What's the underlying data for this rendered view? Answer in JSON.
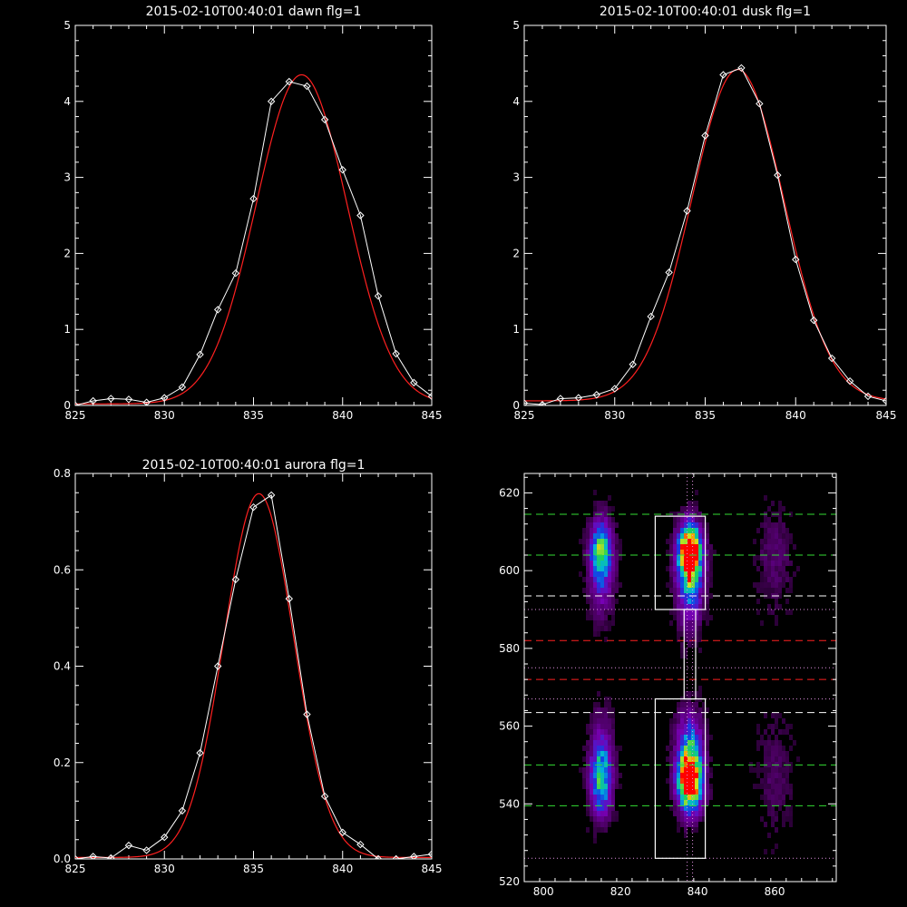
{
  "chart_data": [
    {
      "type": "line",
      "title": "2015-02-10T00:40:01 dawn flg=1",
      "xlim": [
        825,
        845
      ],
      "ylim": [
        0,
        5
      ],
      "xticks": [
        "825",
        "830",
        "835",
        "840",
        "845"
      ],
      "yticks": [
        "0",
        "1",
        "2",
        "3",
        "4",
        "5"
      ],
      "series": [
        {
          "kind": "data",
          "color": "#ffffff",
          "marker": "diamond",
          "x": [
            825,
            826,
            827,
            828,
            829,
            830,
            831,
            832,
            833,
            834,
            835,
            836,
            837,
            838,
            839,
            840,
            841,
            842,
            843,
            844,
            845
          ],
          "y": [
            0.0,
            0.06,
            0.09,
            0.08,
            0.04,
            0.1,
            0.24,
            0.67,
            1.26,
            1.74,
            2.72,
            4.0,
            4.26,
            4.2,
            3.76,
            3.1,
            2.5,
            1.44,
            0.68,
            0.3,
            0.12
          ]
        },
        {
          "kind": "fit",
          "color": "#ff2020",
          "gauss": {
            "amp": 4.33,
            "center": 837.7,
            "sigma": 2.55,
            "base": 0.02
          }
        }
      ]
    },
    {
      "type": "line",
      "title": "2015-02-10T00:40:01 dusk flg=1",
      "xlim": [
        825,
        845
      ],
      "ylim": [
        0,
        5
      ],
      "xticks": [
        "825",
        "830",
        "835",
        "840",
        "845"
      ],
      "yticks": [
        "0",
        "1",
        "2",
        "3",
        "4",
        "5"
      ],
      "series": [
        {
          "kind": "data",
          "color": "#ffffff",
          "marker": "diamond",
          "x": [
            825,
            826,
            827,
            828,
            829,
            830,
            831,
            832,
            833,
            834,
            835,
            836,
            837,
            838,
            839,
            840,
            841,
            842,
            843,
            844,
            845
          ],
          "y": [
            0.03,
            0.01,
            0.09,
            0.1,
            0.14,
            0.22,
            0.54,
            1.17,
            1.75,
            2.56,
            3.55,
            4.35,
            4.44,
            3.97,
            3.03,
            1.92,
            1.12,
            0.62,
            0.32,
            0.12,
            0.06
          ]
        },
        {
          "kind": "fit",
          "color": "#ff2020",
          "gauss": {
            "amp": 4.36,
            "center": 836.8,
            "sigma": 2.55,
            "base": 0.06
          }
        }
      ]
    },
    {
      "type": "line",
      "title": "2015-02-10T00:40:01 aurora flg=1",
      "xlim": [
        825,
        845
      ],
      "ylim": [
        0,
        0.8
      ],
      "xticks": [
        "825",
        "830",
        "835",
        "840",
        "845"
      ],
      "yticks": [
        "0.0",
        "0.2",
        "0.4",
        "0.6",
        "0.8"
      ],
      "series": [
        {
          "kind": "data",
          "color": "#ffffff",
          "marker": "diamond",
          "x": [
            825,
            826,
            827,
            828,
            829,
            830,
            831,
            832,
            833,
            834,
            835,
            836,
            837,
            838,
            839,
            840,
            841,
            842,
            843,
            844,
            845
          ],
          "y": [
            0.0,
            0.005,
            0.002,
            0.028,
            0.018,
            0.045,
            0.1,
            0.22,
            0.4,
            0.58,
            0.73,
            0.755,
            0.54,
            0.3,
            0.13,
            0.055,
            0.03,
            0.0,
            0.0,
            0.005,
            0.01
          ]
        },
        {
          "kind": "fit",
          "color": "#ff2020",
          "gauss": {
            "amp": 0.755,
            "center": 835.3,
            "sigma": 1.95,
            "base": 0.003
          }
        }
      ]
    },
    {
      "type": "heatmap",
      "title": "",
      "xlim": [
        795,
        876
      ],
      "ylim": [
        520,
        625
      ],
      "xticks": [
        "800",
        "820",
        "840",
        "860"
      ],
      "yticks": [
        "520",
        "540",
        "560",
        "580",
        "600",
        "620"
      ],
      "blobs": [
        {
          "x": 838,
          "y": 605,
          "sx": 2.0,
          "sy": 4.5,
          "amp": 1.0
        },
        {
          "x": 838,
          "y": 598,
          "sx": 2.4,
          "sy": 8.0,
          "amp": 0.55
        },
        {
          "x": 838,
          "y": 545,
          "sx": 2.2,
          "sy": 5.0,
          "amp": 0.95
        },
        {
          "x": 838,
          "y": 553,
          "sx": 2.4,
          "sy": 7.0,
          "amp": 0.55
        },
        {
          "x": 815,
          "y": 606,
          "sx": 2.0,
          "sy": 5.0,
          "amp": 0.55
        },
        {
          "x": 815,
          "y": 598,
          "sx": 2.2,
          "sy": 7.0,
          "amp": 0.3
        },
        {
          "x": 815,
          "y": 545,
          "sx": 2.0,
          "sy": 6.0,
          "amp": 0.5
        },
        {
          "x": 815,
          "y": 553,
          "sx": 2.0,
          "sy": 7.0,
          "amp": 0.28
        },
        {
          "x": 860,
          "y": 603,
          "sx": 3.0,
          "sy": 9.0,
          "amp": 0.12
        },
        {
          "x": 860,
          "y": 547,
          "sx": 3.0,
          "sy": 10.0,
          "amp": 0.1
        }
      ],
      "boxes": [
        {
          "x0": 829,
          "x1": 842,
          "y0": 590,
          "y1": 614
        },
        {
          "x0": 829,
          "x1": 842,
          "y0": 526,
          "y1": 567
        },
        {
          "x0": 836.5,
          "x1": 839.5,
          "y0": 567,
          "y1": 590
        }
      ],
      "hlines": [
        {
          "y": 614.5,
          "color": "#33dd33",
          "style": "dashed"
        },
        {
          "y": 604,
          "color": "#33dd33",
          "style": "dashed"
        },
        {
          "y": 593.5,
          "color": "#ffffff",
          "style": "dashed"
        },
        {
          "y": 590,
          "color": "#e090e0",
          "style": "dotted"
        },
        {
          "y": 582,
          "color": "#ff2020",
          "style": "dashed"
        },
        {
          "y": 575,
          "color": "#e090e0",
          "style": "dotted"
        },
        {
          "y": 572,
          "color": "#ff2020",
          "style": "dashed"
        },
        {
          "y": 567,
          "color": "#e090e0",
          "style": "dotted"
        },
        {
          "y": 563.5,
          "color": "#ffffff",
          "style": "dashed"
        },
        {
          "y": 550,
          "color": "#33dd33",
          "style": "dashed"
        },
        {
          "y": 539.5,
          "color": "#33dd33",
          "style": "dashed"
        },
        {
          "y": 526,
          "color": "#e090e0",
          "style": "dotted"
        }
      ],
      "vlines": [
        {
          "x": 837.3,
          "color": "#e090e0",
          "style": "dotted"
        },
        {
          "x": 838.7,
          "color": "#e090e0",
          "style": "dotted"
        }
      ],
      "peaks": [
        {
          "x": 838,
          "y": 605
        },
        {
          "x": 839,
          "y": 543
        }
      ]
    }
  ]
}
